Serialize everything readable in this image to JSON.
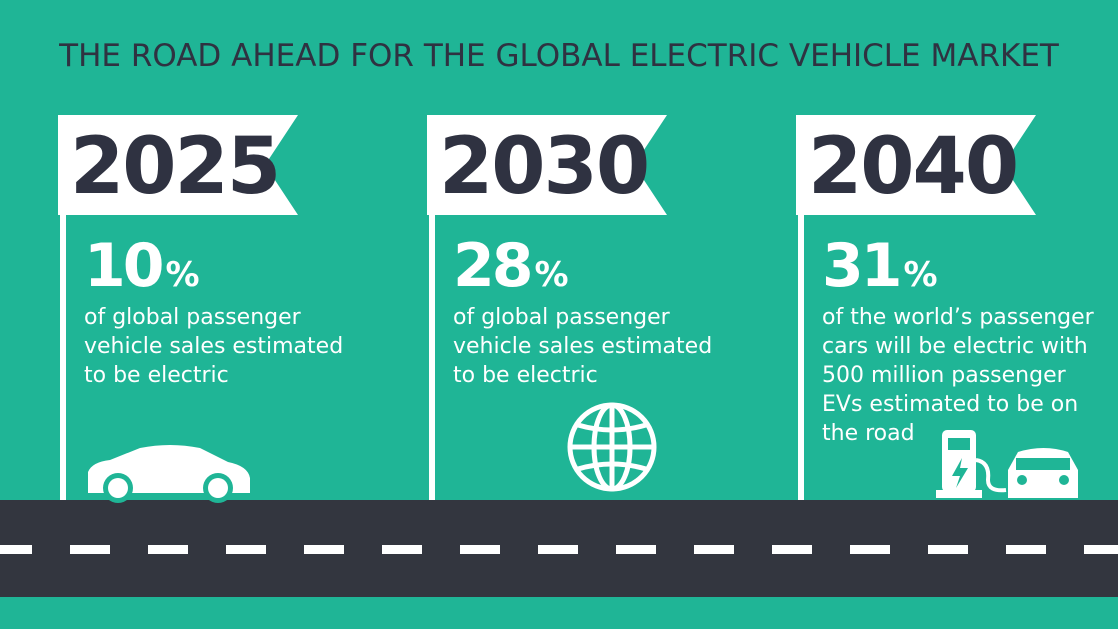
{
  "title": "THE ROAD AHEAD FOR THE GLOBAL ELECTRIC VEHICLE MARKET",
  "milestones": [
    {
      "year": "2025",
      "value": "10",
      "unit": "%",
      "lines": [
        "of global passenger",
        "vehicle sales estimated",
        "to be electric"
      ]
    },
    {
      "year": "2030",
      "value": "28",
      "unit": "%",
      "lines": [
        "of global passenger",
        "vehicle sales estimated",
        "to be electric"
      ]
    },
    {
      "year": "2040",
      "value": "31",
      "unit": "%",
      "lines": [
        "of the world’s passenger",
        "cars will be electric with",
        "500 million passenger",
        "EVs estimated to be on",
        "the road"
      ]
    }
  ]
}
